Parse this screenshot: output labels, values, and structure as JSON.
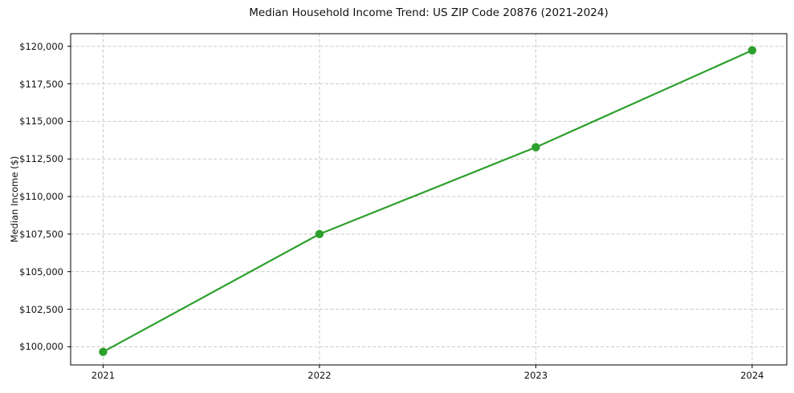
{
  "figure": {
    "background": "#ffffff",
    "text_color": "#111111"
  },
  "chart_data": {
    "type": "line",
    "title": "Median Household Income Trend: US ZIP Code 20876 (2021-2024)",
    "ylabel": "Median Income ($)",
    "x": [
      2021,
      2022,
      2023,
      2024
    ],
    "x_tick_labels": [
      "2021",
      "2022",
      "2023",
      "2024"
    ],
    "series": [
      {
        "values": [
          99660,
          107500,
          113280,
          119730
        ],
        "color": "#2ca02c",
        "marker": "circle",
        "line_width": 2.2,
        "marker_radius": 5.2
      }
    ],
    "y_ticks": [
      100000,
      102500,
      105000,
      107500,
      110000,
      112500,
      115000,
      117500,
      120000
    ],
    "y_tick_labels": [
      "$100,000",
      "$102,500",
      "$105,000",
      "$107,500",
      "$110,000",
      "$112,500",
      "$115,000",
      "$117,500",
      "$120,000"
    ],
    "ylim": [
      98790,
      120840
    ],
    "xlim": [
      2020.85,
      2024.16
    ],
    "grid": true,
    "grid_style": "dashed",
    "grid_color": "#c9c9c9",
    "legend": "none",
    "spine_color": "#000000",
    "tick_color": "#000000"
  }
}
